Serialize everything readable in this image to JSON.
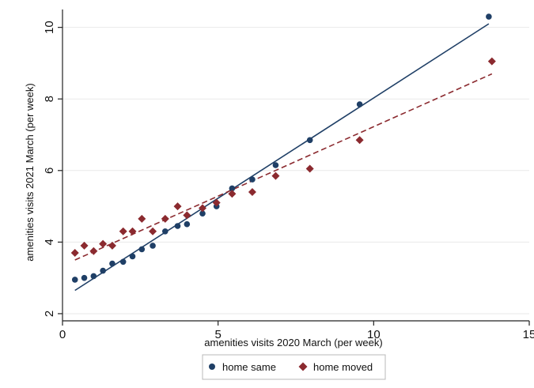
{
  "chart_data": {
    "type": "scatter",
    "title": "",
    "xlabel": "amenities visits 2020 March (per week)",
    "ylabel": "amenities visits 2021 March (per week)",
    "xlim": [
      0,
      15
    ],
    "ylim": [
      1.8,
      10.5
    ],
    "xticks": [
      0,
      5,
      10,
      15
    ],
    "yticks": [
      2,
      4,
      6,
      8,
      10
    ],
    "grid": "horizontal",
    "legend_position": "bottom",
    "series": [
      {
        "name": "home same",
        "marker": "circle",
        "color": "#1f3f66",
        "x": [
          0.4,
          0.7,
          1.0,
          1.3,
          1.6,
          1.95,
          2.25,
          2.55,
          2.9,
          3.3,
          3.7,
          4.0,
          4.5,
          4.95,
          5.45,
          6.1,
          6.85,
          7.95,
          9.55,
          13.7
        ],
        "y": [
          2.95,
          3.0,
          3.05,
          3.2,
          3.4,
          3.45,
          3.6,
          3.8,
          3.9,
          4.3,
          4.45,
          4.5,
          4.8,
          5.0,
          5.5,
          5.75,
          6.15,
          6.85,
          7.85,
          10.3
        ],
        "fit": {
          "style": "solid",
          "x": [
            0.4,
            13.7
          ],
          "y": [
            2.65,
            10.1
          ]
        }
      },
      {
        "name": "home moved",
        "marker": "diamond",
        "color": "#8b2a2f",
        "x": [
          0.4,
          0.7,
          1.0,
          1.3,
          1.6,
          1.95,
          2.25,
          2.55,
          2.9,
          3.3,
          3.7,
          4.0,
          4.5,
          4.95,
          5.45,
          6.1,
          6.85,
          7.95,
          9.55,
          13.8
        ],
        "y": [
          3.7,
          3.9,
          3.75,
          3.95,
          3.9,
          4.3,
          4.3,
          4.65,
          4.3,
          4.65,
          5.0,
          4.75,
          4.95,
          5.1,
          5.35,
          5.4,
          5.85,
          6.05,
          6.85,
          9.05
        ],
        "fit": {
          "style": "dashed",
          "x": [
            0.4,
            13.8
          ],
          "y": [
            3.5,
            8.7
          ]
        }
      }
    ]
  }
}
